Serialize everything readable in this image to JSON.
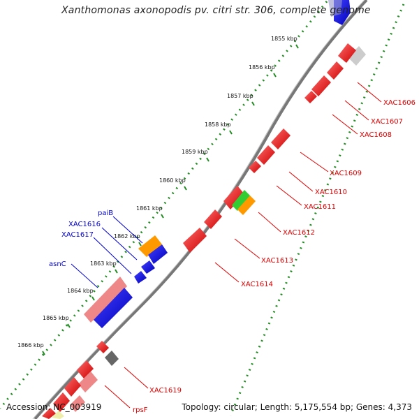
{
  "title": "Xanthomonas axonopodis pv. citri str. 306, complete genome",
  "footer": {
    "accession": "Accession: NC_003919",
    "topology": "Topology: circular; Length: 5,175,554 bp; Genes: 4,373"
  },
  "scale_labels": [
    "1855 kbp",
    "1856 kbp",
    "1857 kbp",
    "1858 kbp",
    "1859 kbp",
    "1860 kbp",
    "1861 kbp",
    "1862 kbp",
    "1863 kbp",
    "1864 kbp",
    "1865 kbp",
    "1866 kbp"
  ],
  "gene_labels_right": [
    "XAC1606",
    "XAC1607",
    "XAC1608",
    "XAC1609",
    "XAC1610",
    "XAC1611",
    "XAC1612",
    "XAC1613",
    "XAC1614",
    "XAC1619",
    "rpsF"
  ],
  "gene_labels_left": [
    "paiB",
    "XAC1616",
    "XAC1617",
    "asnC"
  ],
  "colors": {
    "backbone": "#888888",
    "forward_cds": "#0000ee",
    "reverse_cds": "#ee0000",
    "pink_feature": "#ee8888",
    "orange_feature": "#ff9900",
    "green_feature": "#33cc33",
    "grey_feature": "#666666",
    "light_grey_feature": "#cccccc",
    "gc_dots": "#228b22",
    "label_red": "#dd0000",
    "label_blue": "#0000cc"
  }
}
